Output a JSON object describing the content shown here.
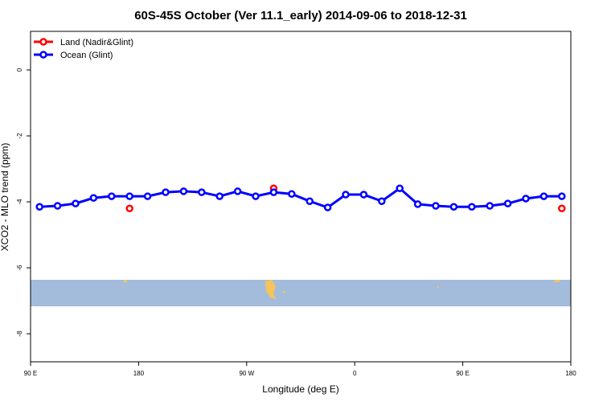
{
  "chart_data": {
    "type": "line",
    "title": "60S-45S October (Ver 11.1_early)   2014-09-06 to 2018-12-31",
    "x_label": "Longitude (deg E)",
    "y_label": "XCO2 - MLO trend (ppm)",
    "xlim": [
      90,
      540
    ],
    "xticks": [
      {
        "value": 90,
        "label": "90 E"
      },
      {
        "value": 180,
        "label": "180"
      },
      {
        "value": 270,
        "label": "90 W"
      },
      {
        "value": 360,
        "label": "0"
      },
      {
        "value": 450,
        "label": "90 E"
      },
      {
        "value": 540,
        "label": "180"
      }
    ],
    "ylim": [
      -8.85,
      1.17
    ],
    "yticks": [
      0,
      -2,
      -4,
      -6,
      -8
    ],
    "legend": "top-left",
    "series": [
      {
        "name": "Land (Nadir&Glint)",
        "color": "#ff0000",
        "lines": false,
        "x": [
          172.5,
          292.5,
          532.5
        ],
        "values": [
          -4.2,
          -3.59,
          -4.2
        ]
      },
      {
        "name": "Ocean (Glint)",
        "color": "#0000ff",
        "lines": true,
        "x": [
          97.5,
          112.5,
          127.5,
          142.5,
          157.5,
          172.5,
          187.5,
          202.5,
          217.5,
          232.5,
          247.5,
          262.5,
          277.5,
          292.5,
          307.5,
          322.5,
          337.5,
          352.5,
          367.5,
          382.5,
          397.5,
          412.5,
          427.5,
          442.5,
          457.5,
          472.5,
          487.5,
          502.5,
          517.5,
          532.5
        ],
        "values": [
          -4.15,
          -4.12,
          -4.05,
          -3.88,
          -3.83,
          -3.83,
          -3.83,
          -3.71,
          -3.68,
          -3.71,
          -3.83,
          -3.68,
          -3.83,
          -3.71,
          -3.76,
          -3.98,
          -4.17,
          -3.78,
          -3.78,
          -3.98,
          -3.59,
          -4.07,
          -4.12,
          -4.15,
          -4.15,
          -4.12,
          -4.05,
          -3.9,
          -3.83,
          -3.83
        ]
      }
    ]
  }
}
